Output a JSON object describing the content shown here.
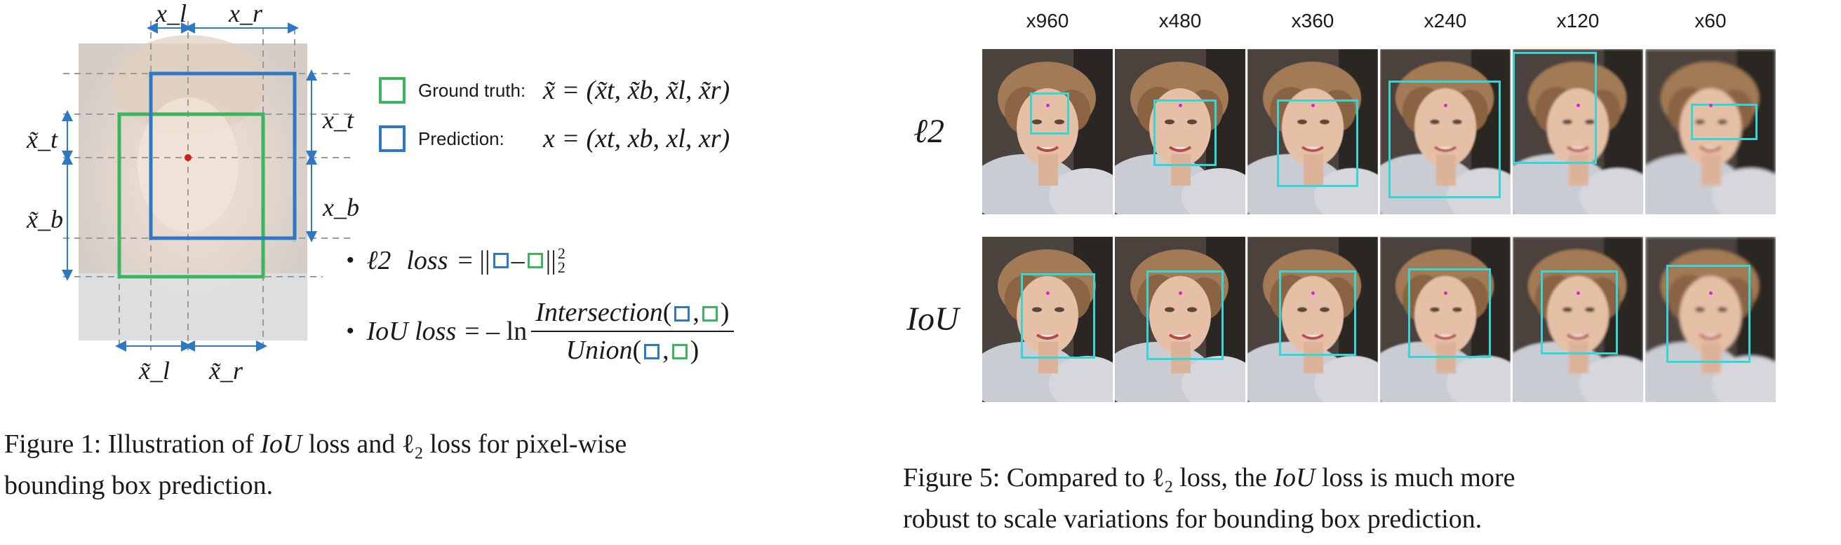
{
  "figure1": {
    "dim_labels": {
      "xl": "x_l",
      "xr": "x_r",
      "xt": "x_t",
      "xb": "x_b",
      "gt_l": "x̃_l",
      "gt_r": "x̃_r",
      "gt_t": "x̃_t",
      "gt_b": "x̃_b"
    },
    "legend": [
      {
        "label": "Ground truth:",
        "formula": "x̃ = (x̃t, x̃b, x̃l, x̃r)",
        "color": "#3cb55e"
      },
      {
        "label": "Prediction:",
        "formula": "x = (xt, xb, xl, xr)",
        "color": "#2f78c4"
      }
    ],
    "l2_loss": {
      "name": "ℓ2",
      "word": "loss",
      "eq": "= ||",
      "minus": "–",
      "tail": "||",
      "sup": "2",
      "sub": "2"
    },
    "iou_loss": {
      "name": "IoU loss",
      "eq": "= – ln",
      "numerator": "Intersection",
      "denominator": "Union"
    },
    "caption_prefix": "Figure 1: Illustration of ",
    "caption_iou": "IoU",
    "caption_mid": " loss and ℓ",
    "caption_sub": "2",
    "caption_rest": " loss for pixel-wise",
    "caption_line2": "bounding box prediction."
  },
  "figure5": {
    "columns": [
      "x960",
      "x480",
      "x360",
      "x240",
      "x120",
      "x60"
    ],
    "rows": [
      "ℓ2",
      "IoU"
    ],
    "box_color": "#35d6d6",
    "dot_color": "#d02ad0",
    "caption_line1_a": "Figure 5: Compared to ℓ",
    "caption_line1_sub": "2",
    "caption_line1_b": " loss, the ",
    "caption_line1_iou": "IoU",
    "caption_line1_c": " loss is much more",
    "caption_line2": "robust to scale variations for bounding box prediction."
  }
}
